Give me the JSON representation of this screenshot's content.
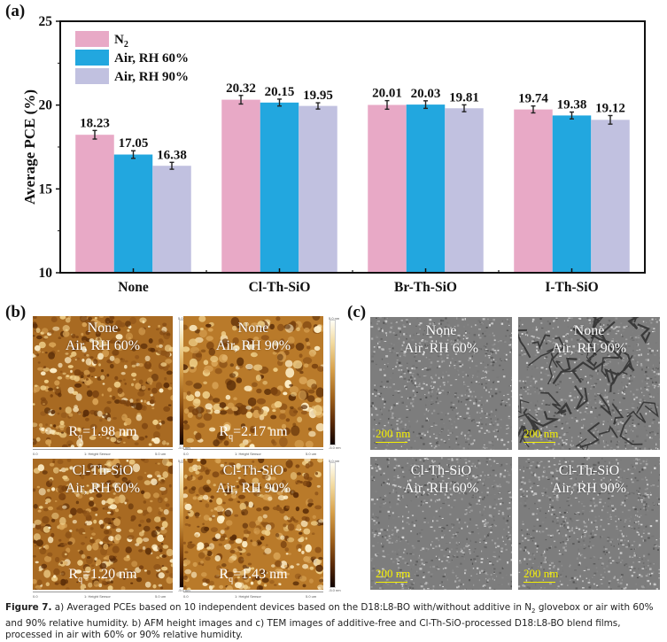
{
  "figure": {
    "panel_labels": {
      "a": "(a)",
      "b": "(b)",
      "c": "(c)"
    },
    "caption": {
      "label": "Figure 7.",
      "text_part1": " a) Averaged PCEs based on 10 independent devices based on the D18:L8-BO with/without additive in N",
      "n2_sub": "2",
      "text_part2": " glovebox or air with 60% and 90% relative humidity. b) AFM height images and c) TEM images of additive-free and Cl-Th-SiO-processed D18:L8-BO blend films, processed in air with 60% or 90% relative humidity."
    }
  },
  "chart_data": {
    "type": "bar",
    "title": "",
    "xlabel": "",
    "ylabel": "Average PCE (%)",
    "ylim": [
      10,
      25
    ],
    "yticks": [
      10,
      15,
      20,
      25
    ],
    "categories": [
      "None",
      "Cl-Th-SiO",
      "Br-Th-SiO",
      "I-Th-SiO"
    ],
    "legend_position": "top-left",
    "grid": false,
    "series": [
      {
        "name": "N2",
        "name_main": "N",
        "name_sub": "2",
        "color": "#e8a9c6",
        "values": [
          18.23,
          20.32,
          20.01,
          19.74
        ],
        "labels": [
          "18.23",
          "20.32",
          "20.01",
          "19.74"
        ],
        "errors": [
          0.15,
          0.15,
          0.15,
          0.1
        ]
      },
      {
        "name": "Air, RH 60%",
        "color": "#22a7df",
        "values": [
          17.05,
          20.15,
          20.03,
          19.38
        ],
        "labels": [
          "17.05",
          "20.15",
          "20.03",
          "19.38"
        ],
        "errors": [
          0.12,
          0.1,
          0.12,
          0.1
        ]
      },
      {
        "name": "Air, RH 90%",
        "color": "#c1c1e0",
        "values": [
          16.38,
          19.95,
          19.81,
          19.12
        ],
        "labels": [
          "16.38",
          "19.95",
          "19.81",
          "19.12"
        ],
        "errors": [
          0.1,
          0.08,
          0.1,
          0.15
        ]
      }
    ]
  },
  "afm": {
    "images": [
      {
        "line1": "None",
        "line2": "Air, RH 60%",
        "rq_prefix": "R",
        "rq_sub": "q",
        "rq_value": "=1.98 nm"
      },
      {
        "line1": "None",
        "line2": "Air, RH 90%",
        "rq_prefix": "R",
        "rq_sub": "q",
        "rq_value": "=2.17 nm"
      },
      {
        "line1": "Cl-Th-SiO",
        "line2": "Air, RH 60%",
        "rq_prefix": "R",
        "rq_sub": "q",
        "rq_value": "=1.20 nm"
      },
      {
        "line1": "Cl-Th-SiO",
        "line2": "Air, RH 90%",
        "rq_prefix": "R",
        "rq_sub": "q",
        "rq_value": "=1.43 nm"
      }
    ],
    "axis_left": "0.0",
    "axis_center": "1: Height Sensor",
    "axis_right": "5.0 um",
    "cbar_top": "5.0 nm",
    "cbar_bottom": "-5.0 nm"
  },
  "tem": {
    "images": [
      {
        "line1": "None",
        "line2": "Air, RH 60%"
      },
      {
        "line1": "None",
        "line2": "Air, RH 90%"
      },
      {
        "line1": "Cl-Th-SiO",
        "line2": "Air, RH 60%"
      },
      {
        "line1": "Cl-Th-SiO",
        "line2": "Air, RH 90%"
      }
    ],
    "scale_bar": "200 nm"
  }
}
